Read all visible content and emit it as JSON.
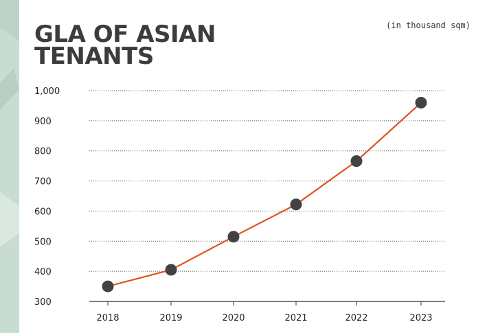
{
  "chart_data": {
    "type": "line",
    "title": "GLA OF ASIAN\nTENANTS",
    "unit_note": "(in thousand sqm)",
    "categories": [
      "2018",
      "2019",
      "2020",
      "2021",
      "2022",
      "2023"
    ],
    "series": [
      {
        "values": [
          350,
          405,
          515,
          622,
          766,
          960
        ]
      }
    ],
    "yticks": [
      "1,000",
      "900",
      "800",
      "700",
      "600",
      "500",
      "400",
      "300"
    ],
    "ylim": [
      300,
      1000
    ],
    "grid": "horizontal dotted",
    "colors": {
      "line": "#e0521e",
      "marker": "#424242",
      "text": "#3c3c3c",
      "background": "#c9dcd2"
    }
  }
}
